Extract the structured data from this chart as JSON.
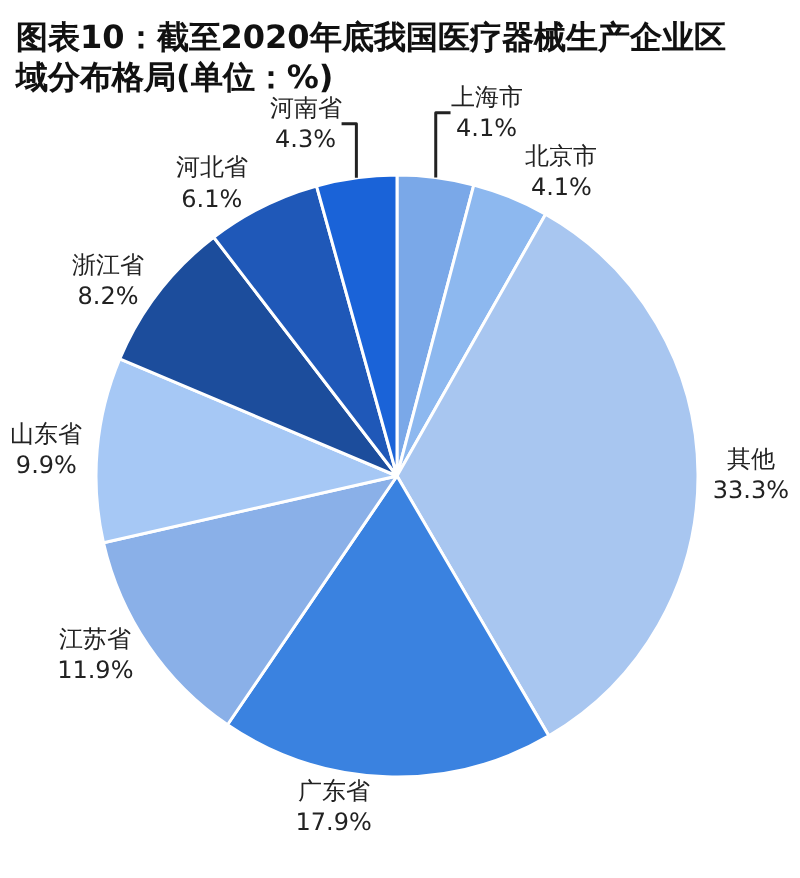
{
  "chart_data": {
    "type": "pie",
    "title": "图表10：截至2020年底我国医疗器械生产企业区域分布格局(单位：%)",
    "categories": [
      "上海市",
      "北京市",
      "其他",
      "广东省",
      "江苏省",
      "山东省",
      "浙江省",
      "河北省",
      "河南省"
    ],
    "values": [
      4.1,
      4.1,
      33.3,
      17.9,
      11.9,
      9.9,
      8.2,
      6.1,
      4.3
    ],
    "value_labels": [
      "4.1%",
      "4.1%",
      "33.3%",
      "17.9%",
      "11.9%",
      "9.9%",
      "8.2%",
      "6.1%",
      "4.3%"
    ],
    "colors": [
      "#7aa8e8",
      "#8db8ef",
      "#a8c6f0",
      "#3a82e0",
      "#8ab0e8",
      "#a6c8f5",
      "#1c4d9c",
      "#1f58b8",
      "#1a63d8"
    ],
    "legend": false
  }
}
